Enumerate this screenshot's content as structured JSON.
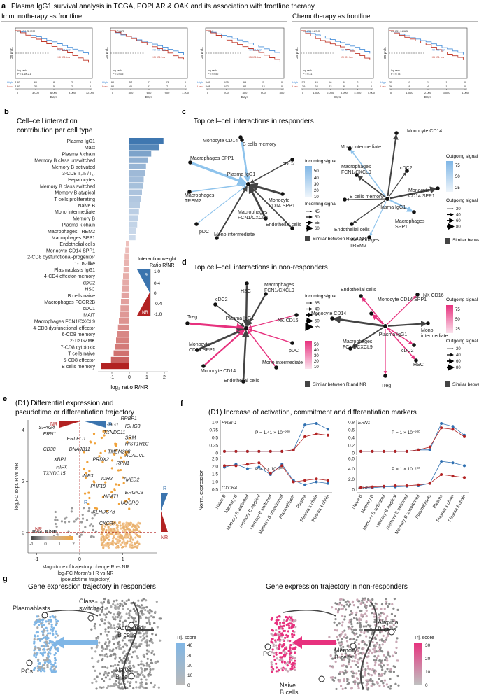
{
  "panel_a": {
    "letter": "a",
    "title": "Plasma IgG1 survival analysis in TCGA, POPLAR & OAK and its association with frontline therapy",
    "immuno_heading": "Immunotherapy as frontline",
    "chemo_heading": "Chemotherapy as frontline",
    "os_label": "OS prob.",
    "days_label": "Days",
    "high_label": "IGHG1 high",
    "low_label": "IGHG1 low",
    "risk_high": "High",
    "risk_low": "Low",
    "plots": [
      {
        "name": "IGHG1 SKCM",
        "p": "P = 1.1e-2.1",
        "ticks": [
          "0",
          "3,000",
          "6,000",
          "9,000",
          "12,000"
        ],
        "risk_high": [
          "130",
          "61",
          "8",
          "2",
          "0"
        ],
        "risk_low": [
          "130",
          "30",
          "5",
          "2",
          "0"
        ]
      },
      {
        "name": "POPLAR",
        "p": "P = 0.025",
        "ticks": [
          "0",
          "300",
          "600",
          "900",
          "1,200"
        ],
        "risk_high": [
          "96",
          "57",
          "47",
          "23",
          "0"
        ],
        "risk_low": [
          "96",
          "41",
          "31",
          "7",
          "0"
        ]
      },
      {
        "name": "OAK",
        "p": "P = 0.032",
        "ticks": [
          "0",
          "200",
          "400",
          "600",
          "800"
        ],
        "risk_high": [
          "349",
          "195",
          "99",
          "5",
          "0"
        ],
        "risk_low": [
          "348",
          "192",
          "84",
          "12",
          "0"
        ]
      },
      {
        "name": "IGHG1 LUSC",
        "p": "P = 0.31",
        "ticks": [
          "0",
          "1,000",
          "2,000",
          "3,000",
          "4,000",
          "5,000"
        ],
        "risk_high": [
          "112",
          "45",
          "16",
          "6",
          "2",
          "1"
        ],
        "risk_low": [
          "139",
          "34",
          "22",
          "8",
          "3",
          "0"
        ]
      },
      {
        "name": "IGHG1 LUAD",
        "p": "P = 0.73",
        "ticks": [
          "0",
          "1,000",
          "2,000",
          "3,000",
          "4,000"
        ],
        "risk_high": [
          "35",
          "9",
          "1",
          "1",
          "0"
        ],
        "risk_low": [
          "36",
          "8",
          "4",
          "1",
          "0"
        ]
      }
    ],
    "logrank": "log-rank"
  },
  "panel_b": {
    "letter": "b",
    "title_line1": "Cell–cell interaction",
    "title_line2": "contribution per cell type",
    "xlabel": "log₂ ratio R/NR",
    "legend_title1": "Interaction weight",
    "legend_title2": "Ratio R/NR",
    "legend_ticks": [
      "1.0",
      "0.4",
      "0",
      "-0.4",
      "-1.0"
    ],
    "legend_r": "R",
    "legend_nr": "NR"
  },
  "chart_data": {
    "type": "bar",
    "orientation": "horizontal",
    "title": "Cell–cell interaction contribution per cell type",
    "xlabel": "log2 ratio R/NR",
    "xlim": [
      -1.8,
      2.2
    ],
    "xticks": [
      "-1",
      "0",
      "1",
      "2"
    ],
    "categories": [
      "Plasma IgG1",
      "Mast",
      "Plasma λ chain",
      "Memory B class unswitched",
      "Memory B activated",
      "3-CD8 TₛTₕ/T₁₇",
      "Hepatocytes",
      "Memory B class switched",
      "Memory B atypical",
      "T cells proliferating",
      "Naive B",
      "Mono intermediate",
      "Memory B",
      "Plasma κ chain",
      "Macrophages TREM2",
      "Macrophages SPP1",
      "Endothelial cells",
      "Monocyte CD14 SPP1",
      "2-CD8 dysfunctional-progenitor",
      "1-Tᴘₕ-like",
      "Plasmablasts IgG1",
      "4-CD4 effector-memory",
      "cDC2",
      "HSC",
      "B cells naive",
      "Macrophages FCGR2B",
      "cDC1",
      "MAIT",
      "Macrophages FCN1/CXCL9",
      "4-CD8 dysfunctional-effector",
      "6-CD8 memory",
      "2-Tᴘ GZMK",
      "7-CD8 cytotoxic",
      "T cells naive",
      "5-CD8 effector",
      "B cells memory"
    ],
    "values": [
      1.95,
      1.7,
      1.25,
      1.05,
      0.95,
      0.88,
      0.82,
      0.78,
      0.72,
      0.66,
      0.6,
      0.55,
      0.5,
      0.45,
      0.4,
      0.35,
      -0.2,
      -0.23,
      -0.27,
      -0.3,
      -0.33,
      -0.36,
      -0.39,
      -0.42,
      -0.45,
      -0.48,
      -0.51,
      -0.55,
      -0.6,
      -0.65,
      -0.7,
      -0.76,
      -0.82,
      -0.9,
      -1.05,
      -1.6
    ]
  },
  "panel_c": {
    "letter": "c",
    "title": "Top cell–cell interactions in responders",
    "left_nodes": [
      "Monocyte CD14",
      "B cells memory",
      "Macrophages SPP1",
      "cDC2",
      "Plasma IgG1",
      "Monocyte CD14 SPP1",
      "Macrophages TREM2",
      "Macrophages FCN1/CXCL9",
      "pDC",
      "Mono intermediate",
      "Endothelial cells"
    ],
    "right_nodes": [
      "Monocyte CD14",
      "Mono intermediate",
      "cDC2",
      "Macrophages FCN1/CXCL9",
      "Monocyte CD14 SPP1",
      "B cells memory",
      "Plasma IgG1",
      "Macrophages SPP1",
      "Endothelial cells",
      "Macrophages TREM2"
    ],
    "incoming_title": "Incoming signal",
    "incoming_ticks": [
      "50",
      "40",
      "30",
      "20",
      "10"
    ],
    "incoming_size_title": "Incoming signal",
    "incoming_sizes": [
      "45",
      "50",
      "55",
      "60"
    ],
    "outgoing_title": "Outgoing signal",
    "outgoing_ticks": [
      "75",
      "50",
      "25"
    ],
    "outgoing_size_title": "Outgoing signal",
    "outgoing_sizes": [
      "20",
      "40",
      "60",
      "80"
    ],
    "similar": "Similar between R and NR"
  },
  "panel_d": {
    "letter": "d",
    "title": "Top cell–cell interactions in non-responders",
    "left_nodes": [
      "HSC",
      "Macrophages FCN1/CXCL9",
      "cDC2",
      "NK CD16",
      "Plasma IgG1",
      "Tᵣₑg",
      "Monocyte CD14 SPP1",
      "pDC",
      "Monocyte CD14",
      "Mono intermediate",
      "Endothelial cells"
    ],
    "right_nodes": [
      "NK CD16",
      "Endothelial cells",
      "Monocyte CD14 SPP1",
      "Monocyte CD14",
      "Mono intermediate",
      "Plasma IgG1",
      "cDC2",
      "Macrophages FCN1/CXCL9",
      "HSC",
      "Tᵣₑg"
    ],
    "incoming_title": "Incoming signal",
    "incoming_sizes": [
      "35",
      "40",
      "45",
      "50",
      "55"
    ],
    "incoming_color_ticks": [
      "50",
      "40",
      "30",
      "20",
      "10"
    ],
    "outgoing_title": "Outgoing signal",
    "outgoing_ticks": [
      "75",
      "50",
      "25"
    ],
    "outgoing_sizes": [
      "20",
      "40",
      "60",
      "80"
    ],
    "similar": "Similar between R and NR"
  },
  "panel_e": {
    "letter": "e",
    "title_line1": "(D1) Differential expression and",
    "title_line2": "pseudotime or differentiation trajectory",
    "ylabel": "log₂FC expr. R vs NR",
    "xlabel_line1": "Magnitude of trajectory change R vs NR",
    "xlabel_line2": "log₂FC Moran's I R vs NR",
    "xlabel_line3": "(pseudotime trajectory)",
    "xticks": [
      "-1",
      "0",
      "1"
    ],
    "yticks": [
      "4",
      "2",
      "0"
    ],
    "nr": "NR",
    "r": "R",
    "legend_title": "Ratio R/NR",
    "legend_ticks": [
      "-1",
      "0",
      "1",
      "2"
    ],
    "genes": [
      "RRBP1",
      "SPAG4",
      "IGHG1",
      "IGHG3",
      "ERN1",
      "TXNDC11",
      "SRM",
      "ERLEC1",
      "HIST1H1C",
      "CD38",
      "DNAJB11",
      "TMEM208",
      "ACADVL",
      "XBP1",
      "PRDX2",
      "RPN1",
      "HIFX",
      "TXNDC15",
      "IMP3",
      "IDH2",
      "TMED2",
      "PHF19",
      "NEAT1",
      "ERGIC3",
      "KLHDC7B",
      "CXCR4",
      "UQCRQ"
    ]
  },
  "panel_f": {
    "letter": "f",
    "title": "(D1) Increase of activation, commitment and differentiation markers",
    "ylabel": "Norm. expression",
    "categories": [
      "Naive B",
      "Memory B",
      "Memory B activated",
      "Memory B atypical",
      "Memory B switched",
      "Memory B unswitched",
      "Plasmablasts",
      "Plasma",
      "Plasma κ chain",
      "Plasma λ chain"
    ],
    "subplots": [
      {
        "gene": "RRBP1",
        "p": "P = 1.41 × 10⁻²⁰⁰",
        "yticks": [
          "1.0",
          "0.75",
          "0.5",
          "0.25",
          "0"
        ]
      },
      {
        "gene": "ERN1",
        "p": "P = 1 × 10⁻²⁰⁰",
        "yticks": [
          "0.8",
          "0.6",
          "0.4",
          "0.2",
          "0"
        ]
      },
      {
        "gene": "CXCR4",
        "p": "P = 1 × 10⁻²⁰⁰",
        "yticks": [
          "2.5",
          "2.0",
          "1.5",
          "1.0",
          "0.5"
        ]
      },
      {
        "gene": "IGHG1",
        "p": "P = 1 × 10⁻²⁰⁰",
        "yticks": [
          "6.0",
          "4.0",
          "2.0",
          "0"
        ]
      }
    ]
  },
  "panel_g": {
    "letter": "g",
    "left_title": "Gene expression trajectory in responders",
    "right_title": "Gene expression trajectory in non-responders",
    "left_labels": [
      "Plasmablasts",
      "Class switched",
      "Activated B cells",
      "PCs",
      "Naive B cells"
    ],
    "right_labels": [
      "Atypical B cells",
      "Memory B cells",
      "PC",
      "Naive B cells"
    ],
    "legend_title": "Trj. score",
    "left_ticks": [
      "40",
      "30",
      "20",
      "10",
      "0"
    ],
    "right_ticks": [
      "30",
      "20",
      "10",
      "0"
    ]
  }
}
